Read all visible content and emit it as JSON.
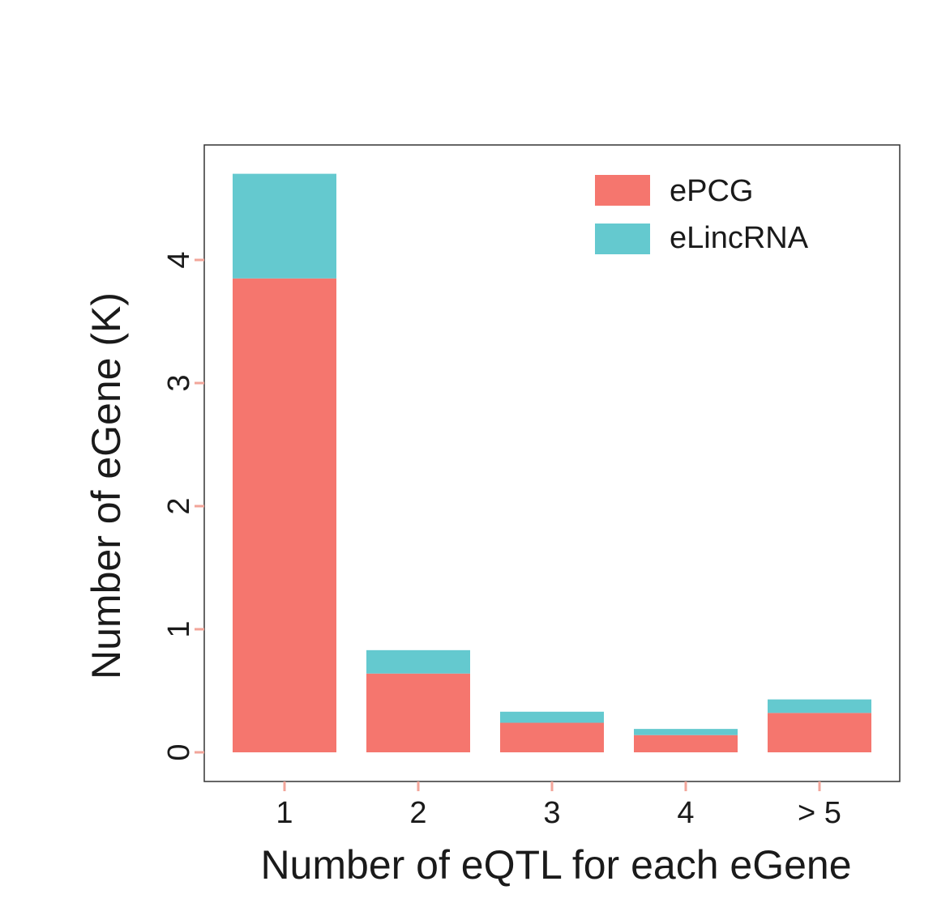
{
  "chart_data": {
    "type": "bar",
    "stacked": true,
    "categories": [
      "1",
      "2",
      "3",
      "4",
      "> 5"
    ],
    "series": [
      {
        "name": "ePCG",
        "color": "#F5766E",
        "values": [
          3.85,
          0.64,
          0.24,
          0.14,
          0.32
        ]
      },
      {
        "name": "eLincRNA",
        "color": "#64C9CF",
        "values": [
          0.85,
          0.19,
          0.09,
          0.05,
          0.11
        ]
      }
    ],
    "xlabel": "Number of eQTL for each eGene",
    "ylabel": "Number of eGene (K)",
    "yticks": [
      "0",
      "1",
      "2",
      "3",
      "4"
    ],
    "ylim": [
      0,
      4.7
    ],
    "tick_color": "#F2A59A",
    "frame_color": "#333333",
    "grid": false,
    "legend_position": "top-right"
  }
}
